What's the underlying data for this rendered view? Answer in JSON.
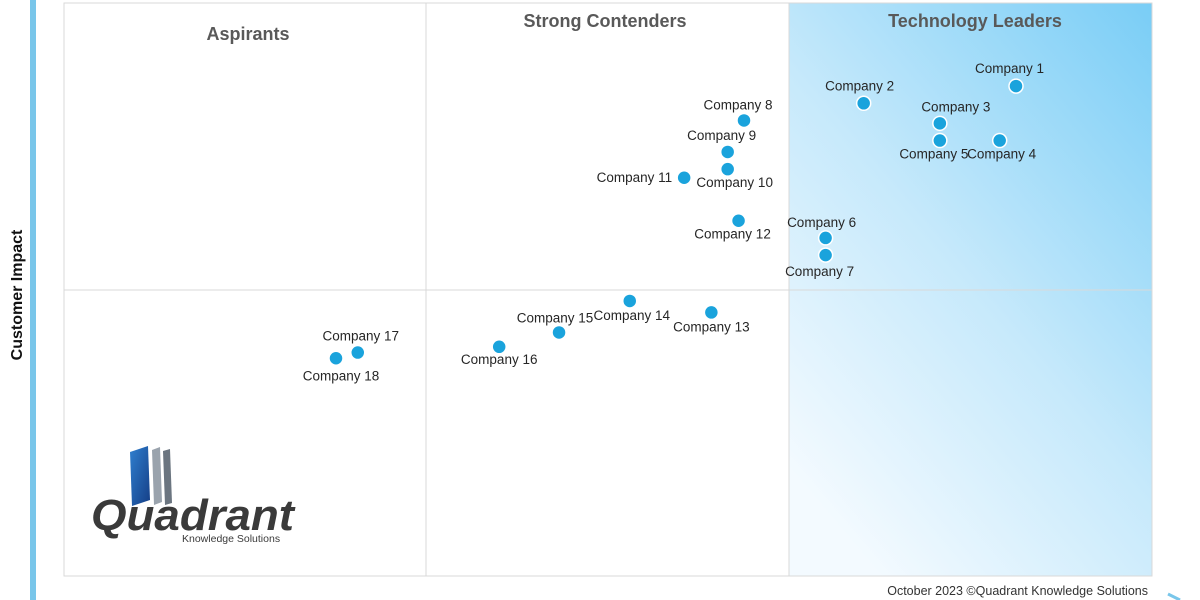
{
  "chart_data": {
    "type": "scatter",
    "ylabel": "Customer Impact",
    "quadrants": {
      "top_left": "Aspirants",
      "top_middle": "Strong Contenders",
      "top_right": "Technology Leaders"
    },
    "points": [
      {
        "label": "Company 1",
        "x": 8.75,
        "y": 8.55
      },
      {
        "label": "Company 2",
        "x": 7.35,
        "y": 8.25
      },
      {
        "label": "Company 3",
        "x": 8.05,
        "y": 7.9
      },
      {
        "label": "Company 4",
        "x": 8.6,
        "y": 7.6
      },
      {
        "label": "Company 5",
        "x": 8.05,
        "y": 7.6
      },
      {
        "label": "Company 6",
        "x": 7.0,
        "y": 5.9
      },
      {
        "label": "Company 7",
        "x": 7.0,
        "y": 5.6
      },
      {
        "label": "Company 8",
        "x": 6.25,
        "y": 7.95
      },
      {
        "label": "Company 9",
        "x": 6.1,
        "y": 7.4
      },
      {
        "label": "Company 10",
        "x": 6.1,
        "y": 7.1
      },
      {
        "label": "Company 11",
        "x": 5.7,
        "y": 6.95
      },
      {
        "label": "Company 12",
        "x": 6.2,
        "y": 6.2
      },
      {
        "label": "Company 13",
        "x": 5.95,
        "y": 4.6
      },
      {
        "label": "Company 14",
        "x": 5.2,
        "y": 4.8
      },
      {
        "label": "Company 15",
        "x": 4.55,
        "y": 4.25
      },
      {
        "label": "Company 16",
        "x": 4.0,
        "y": 4.0
      },
      {
        "label": "Company 17",
        "x": 2.7,
        "y": 3.9
      },
      {
        "label": "Company 18",
        "x": 2.5,
        "y": 3.8
      }
    ]
  },
  "footer": {
    "text": "October 2023 ©Quadrant Knowledge Solutions"
  },
  "logo": {
    "name": "Quadrant",
    "tagline": "Knowledge Solutions"
  },
  "colors": {
    "point": "#1aa3dc",
    "leaders_gradient_start": "#7fd0f7",
    "leaders_gradient_end": "#eef8fe",
    "axis_bar": "#79c6ea"
  }
}
